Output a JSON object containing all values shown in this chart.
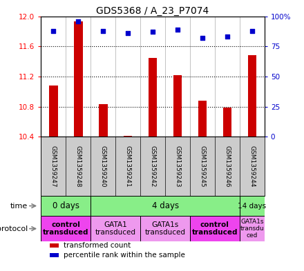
{
  "title": "GDS5368 / A_23_P7074",
  "samples": [
    "GSM1359247",
    "GSM1359248",
    "GSM1359240",
    "GSM1359241",
    "GSM1359242",
    "GSM1359243",
    "GSM1359245",
    "GSM1359246",
    "GSM1359244"
  ],
  "bar_values": [
    11.08,
    11.93,
    10.83,
    10.41,
    11.45,
    11.22,
    10.88,
    10.79,
    11.48
  ],
  "percentile_values": [
    88,
    96,
    88,
    86,
    87,
    89,
    82,
    83,
    88
  ],
  "ylim_left": [
    10.4,
    12.0
  ],
  "yticks_left": [
    10.4,
    10.8,
    11.2,
    11.6,
    12.0
  ],
  "yticks_right": [
    0,
    25,
    50,
    75,
    100
  ],
  "bar_color": "#cc0000",
  "dot_color": "#0000cc",
  "bar_bottom": 10.4,
  "sample_bg_color": "#cccccc",
  "time_boundaries": [
    {
      "label": "0 days",
      "start": 0,
      "end": 2
    },
    {
      "label": "4 days",
      "start": 2,
      "end": 8
    },
    {
      "label": "14 days",
      "start": 8,
      "end": 9
    }
  ],
  "time_color": "#88ee88",
  "protocol_groups": [
    {
      "label": "control\ntransduced",
      "start": 0,
      "end": 2,
      "color": "#ee44ee",
      "bold": true
    },
    {
      "label": "GATA1\ntransduced",
      "start": 2,
      "end": 4,
      "color": "#ee99ee",
      "bold": false
    },
    {
      "label": "GATA1s\ntransduced",
      "start": 4,
      "end": 6,
      "color": "#ee99ee",
      "bold": false
    },
    {
      "label": "control\ntransduced",
      "start": 6,
      "end": 8,
      "color": "#ee44ee",
      "bold": true
    },
    {
      "label": "GATA1s\ntransdu\nced",
      "start": 8,
      "end": 9,
      "color": "#ee99ee",
      "bold": false
    }
  ],
  "legend_items": [
    {
      "color": "#cc0000",
      "label": "transformed count"
    },
    {
      "color": "#0000cc",
      "label": "percentile rank within the sample"
    }
  ]
}
